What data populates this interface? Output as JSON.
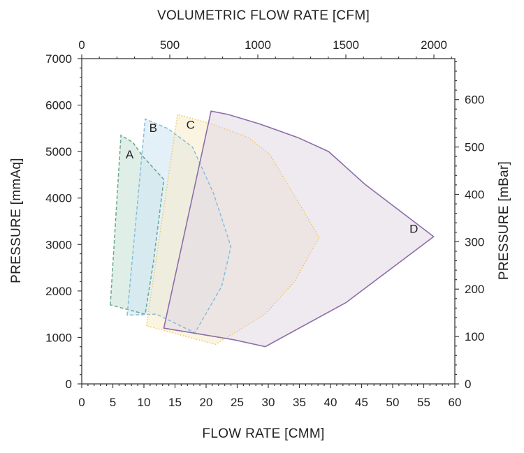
{
  "chart_data": {
    "type": "area",
    "top_axis_title": "VOLUMETRIC FLOW RATE [CFM]",
    "xlabel": "FLOW RATE [CMM]",
    "ylabel": "PRESSURE [mmAq]",
    "right_axis_title": "PRESSURE [mBar]",
    "xlim": [
      0,
      60
    ],
    "ylim": [
      0,
      7000
    ],
    "top_xlim_cfm": [
      0,
      2118.9
    ],
    "right_ylim_mbar": [
      0,
      686.5
    ],
    "x_ticks": [
      "0",
      "5",
      "10",
      "15",
      "20",
      "25",
      "30",
      "35",
      "40",
      "45",
      "50",
      "55",
      "60"
    ],
    "y_ticks": [
      "0",
      "1000",
      "2000",
      "3000",
      "4000",
      "5000",
      "6000",
      "7000"
    ],
    "top_ticks": [
      "0",
      "500",
      "1000",
      "1500",
      "2000"
    ],
    "right_ticks": [
      "0",
      "100",
      "200",
      "300",
      "400",
      "500",
      "600"
    ],
    "grid": false,
    "series": [
      {
        "name": "A",
        "color": "#6aa88c",
        "fill": "#c9e4d8",
        "line_style": "dashed",
        "label_at": [
          7.7,
          4850
        ],
        "points": [
          [
            4.6,
            1700
          ],
          [
            6.3,
            5350
          ],
          [
            8.2,
            5200
          ],
          [
            9.8,
            4900
          ],
          [
            13.2,
            4400
          ],
          [
            11.5,
            2600
          ],
          [
            10.2,
            1500
          ]
        ]
      },
      {
        "name": "B",
        "color": "#86bedb",
        "fill": "#d1e6f4",
        "line_style": "dashed",
        "label_at": [
          11.5,
          5420
        ],
        "points": [
          [
            7.3,
            1480
          ],
          [
            10.2,
            5700
          ],
          [
            13.8,
            5500
          ],
          [
            17.8,
            5100
          ],
          [
            21.2,
            4100
          ],
          [
            24.0,
            2950
          ],
          [
            22.5,
            2100
          ],
          [
            18.2,
            1100
          ],
          [
            12.0,
            1500
          ]
        ]
      },
      {
        "name": "C",
        "color": "#ecc76a",
        "fill": "#f6eccd",
        "line_style": "dotted",
        "label_at": [
          17.5,
          5490
        ],
        "points": [
          [
            10.4,
            1250
          ],
          [
            15.4,
            5800
          ],
          [
            20.8,
            5600
          ],
          [
            26.8,
            5300
          ],
          [
            30.2,
            4950
          ],
          [
            38.2,
            3150
          ],
          [
            34.2,
            2200
          ],
          [
            29.5,
            1500
          ],
          [
            21.5,
            850
          ]
        ]
      },
      {
        "name": "D",
        "color": "#8c6ea8",
        "fill": "#e4dbe6",
        "line_style": "solid",
        "label_at": [
          53.4,
          3250
        ],
        "points": [
          [
            13.2,
            1200
          ],
          [
            20.8,
            5870
          ],
          [
            23.5,
            5800
          ],
          [
            28.5,
            5600
          ],
          [
            34.8,
            5300
          ],
          [
            39.7,
            5000
          ],
          [
            45.5,
            4300
          ],
          [
            56.6,
            3170
          ],
          [
            42.5,
            1750
          ],
          [
            29.5,
            800
          ],
          [
            24.5,
            950
          ]
        ]
      }
    ]
  }
}
